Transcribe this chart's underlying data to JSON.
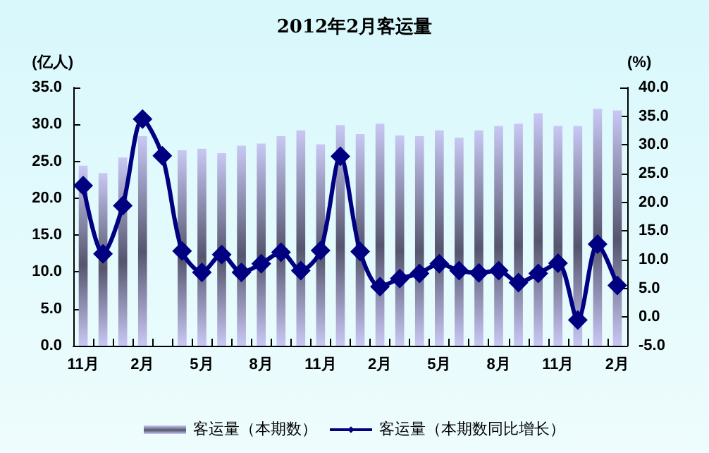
{
  "chart_data": {
    "type": "bar",
    "title": "2012年2月客运量",
    "ylabel": "(亿人)",
    "y2label": "(%)",
    "categories": [
      "11月",
      null,
      null,
      "2月",
      null,
      null,
      "5月",
      null,
      null,
      "8月",
      null,
      null,
      "11月",
      null,
      null,
      "2月",
      null,
      null,
      "5月",
      null,
      null,
      "8月",
      null,
      null,
      "11月",
      null,
      null,
      "2月"
    ],
    "series": [
      {
        "name": "客运量（本期数）",
        "color": "#55556e",
        "values": [
          24.4,
          23.4,
          25.5,
          28.4,
          null,
          26.5,
          26.7,
          26.1,
          27.1,
          27.4,
          28.4,
          29.2,
          27.3,
          29.9,
          28.7,
          30.1,
          28.5,
          28.4,
          29.2,
          28.2,
          29.2,
          29.8,
          30.1,
          31.5,
          29.8,
          29.8,
          32.1,
          31.9
        ]
      },
      {
        "name": "客运量（本期数同比增长）",
        "type": "line",
        "axis": "y2",
        "color": "#000080",
        "values": [
          22.9,
          11.0,
          19.4,
          34.5,
          28.1,
          11.5,
          7.8,
          10.9,
          7.8,
          9.3,
          11.3,
          8.1,
          11.6,
          28.0,
          11.4,
          5.3,
          6.7,
          7.6,
          9.3,
          8.1,
          7.7,
          8.1,
          6.0,
          7.6,
          9.4,
          -0.5,
          12.7,
          5.5
        ]
      }
    ],
    "ylim": [
      0,
      35
    ],
    "yticks": [
      {
        "value": 0,
        "label": "0.0"
      },
      {
        "value": 5,
        "label": "5.0"
      },
      {
        "value": 10,
        "label": "10.0"
      },
      {
        "value": 15,
        "label": "15.0"
      },
      {
        "value": 20,
        "label": "20.0"
      },
      {
        "value": 25,
        "label": "25.0"
      },
      {
        "value": 30,
        "label": "30.0"
      },
      {
        "value": 35,
        "label": "35.0"
      }
    ],
    "y2lim": [
      -5,
      40
    ],
    "y2ticks": [
      {
        "value": -5,
        "label": "-5.0"
      },
      {
        "value": 0,
        "label": "0.0"
      },
      {
        "value": 5,
        "label": "5.0"
      },
      {
        "value": 10,
        "label": "10.0"
      },
      {
        "value": 15,
        "label": "15.0"
      },
      {
        "value": 20,
        "label": "20.0"
      },
      {
        "value": 25,
        "label": "25.0"
      },
      {
        "value": 30,
        "label": "30.0"
      },
      {
        "value": 35,
        "label": "35.0"
      },
      {
        "value": 40,
        "label": "40.0"
      }
    ],
    "grid": false,
    "legend": "bottom",
    "marker": "diamond",
    "line_style": "solid"
  }
}
